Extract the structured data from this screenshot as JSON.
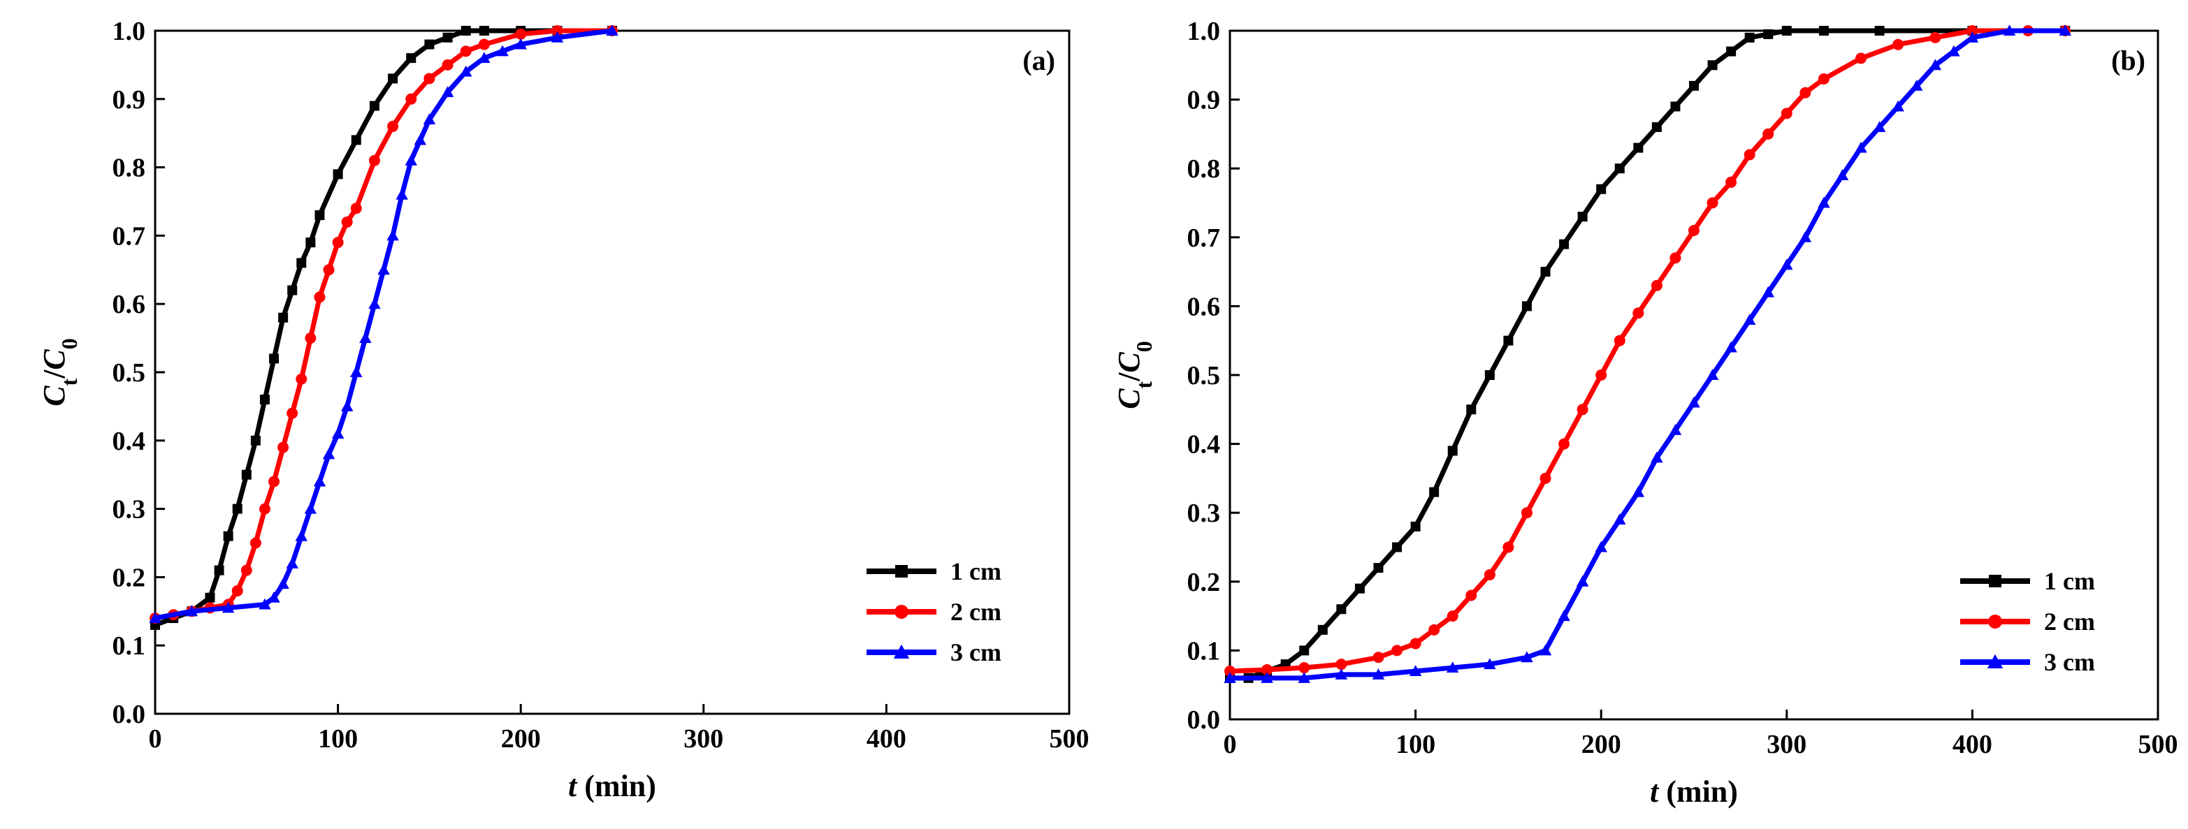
{
  "chart_data": [
    {
      "type": "line",
      "panel_label": "(a)",
      "xlabel_var": "t",
      "xlabel_unit": " (min)",
      "ylabel_main_1": "C",
      "ylabel_sub_1": "t",
      "ylabel_slash": "/",
      "ylabel_main_2": "C",
      "ylabel_sub_2": "0",
      "xlim": [
        0,
        500
      ],
      "ylim": [
        0,
        1.0
      ],
      "x_ticks": [
        0,
        100,
        200,
        300,
        400,
        500
      ],
      "y_ticks": [
        0.0,
        0.1,
        0.2,
        0.3,
        0.4,
        0.5,
        0.6,
        0.7,
        0.8,
        0.9,
        1.0
      ],
      "x_tick_labels": [
        "0",
        "100",
        "200",
        "300",
        "400",
        "500"
      ],
      "y_tick_labels": [
        "0.0",
        "0.1",
        "0.2",
        "0.3",
        "0.4",
        "0.5",
        "0.6",
        "0.7",
        "0.8",
        "0.9",
        "1.0"
      ],
      "legend_position": "lower-right",
      "series": [
        {
          "name": "1 cm",
          "color": "#000000",
          "marker": "square",
          "x": [
            0,
            10,
            20,
            30,
            35,
            40,
            45,
            50,
            55,
            60,
            65,
            70,
            75,
            80,
            85,
            90,
            100,
            110,
            120,
            130,
            140,
            150,
            160,
            170,
            180,
            200,
            220,
            250
          ],
          "y": [
            0.13,
            0.14,
            0.15,
            0.17,
            0.21,
            0.26,
            0.3,
            0.35,
            0.4,
            0.46,
            0.52,
            0.58,
            0.62,
            0.66,
            0.69,
            0.73,
            0.79,
            0.84,
            0.89,
            0.93,
            0.96,
            0.98,
            0.99,
            1.0,
            1.0,
            1.0,
            1.0,
            1.0
          ]
        },
        {
          "name": "2 cm",
          "color": "#ff0000",
          "marker": "circle",
          "x": [
            0,
            10,
            20,
            30,
            40,
            45,
            50,
            55,
            60,
            65,
            70,
            75,
            80,
            85,
            90,
            95,
            100,
            105,
            110,
            120,
            130,
            140,
            150,
            160,
            170,
            180,
            200,
            220,
            250
          ],
          "y": [
            0.14,
            0.145,
            0.15,
            0.155,
            0.16,
            0.18,
            0.21,
            0.25,
            0.3,
            0.34,
            0.39,
            0.44,
            0.49,
            0.55,
            0.61,
            0.65,
            0.69,
            0.72,
            0.74,
            0.81,
            0.86,
            0.9,
            0.93,
            0.95,
            0.97,
            0.98,
            0.995,
            1.0,
            1.0
          ],
          "note": "markers visible"
        },
        {
          "name": "3 cm",
          "color": "#0000ff",
          "marker": "triangle",
          "x": [
            0,
            20,
            40,
            60,
            65,
            70,
            75,
            80,
            85,
            90,
            95,
            100,
            105,
            110,
            115,
            120,
            125,
            130,
            135,
            140,
            145,
            150,
            160,
            170,
            180,
            190,
            200,
            220,
            250
          ],
          "y": [
            0.14,
            0.15,
            0.155,
            0.16,
            0.17,
            0.19,
            0.22,
            0.26,
            0.3,
            0.34,
            0.38,
            0.41,
            0.45,
            0.5,
            0.55,
            0.6,
            0.65,
            0.7,
            0.76,
            0.81,
            0.84,
            0.87,
            0.91,
            0.94,
            0.96,
            0.97,
            0.98,
            0.99,
            1.0
          ]
        }
      ]
    },
    {
      "type": "line",
      "panel_label": "(b)",
      "xlabel_var": "t",
      "xlabel_unit": " (min)",
      "ylabel_main_1": "C",
      "ylabel_sub_1": "t",
      "ylabel_slash": "/",
      "ylabel_main_2": "C",
      "ylabel_sub_2": "0",
      "xlim": [
        0,
        500
      ],
      "ylim": [
        0,
        1.0
      ],
      "x_ticks": [
        0,
        100,
        200,
        300,
        400,
        500
      ],
      "y_ticks": [
        0.0,
        0.1,
        0.2,
        0.3,
        0.4,
        0.5,
        0.6,
        0.7,
        0.8,
        0.9,
        1.0
      ],
      "x_tick_labels": [
        "0",
        "100",
        "200",
        "300",
        "400",
        "500"
      ],
      "y_tick_labels": [
        "0.0",
        "0.1",
        "0.2",
        "0.3",
        "0.4",
        "0.5",
        "0.6",
        "0.7",
        "0.8",
        "0.9",
        "1.0"
      ],
      "legend_position": "lower-right",
      "series": [
        {
          "name": "1 cm",
          "color": "#000000",
          "marker": "square",
          "x": [
            0,
            10,
            20,
            30,
            40,
            50,
            60,
            70,
            80,
            90,
            100,
            110,
            120,
            130,
            140,
            150,
            160,
            170,
            180,
            190,
            200,
            210,
            220,
            230,
            240,
            250,
            260,
            270,
            280,
            290,
            300,
            320,
            350,
            400,
            450
          ],
          "y": [
            0.06,
            0.06,
            0.07,
            0.08,
            0.1,
            0.13,
            0.16,
            0.19,
            0.22,
            0.25,
            0.28,
            0.33,
            0.39,
            0.45,
            0.5,
            0.55,
            0.6,
            0.65,
            0.69,
            0.73,
            0.77,
            0.8,
            0.83,
            0.86,
            0.89,
            0.92,
            0.95,
            0.97,
            0.99,
            0.995,
            1.0,
            1.0,
            1.0,
            1.0,
            1.0
          ]
        },
        {
          "name": "2 cm",
          "color": "#ff0000",
          "marker": "circle",
          "x": [
            0,
            20,
            40,
            60,
            80,
            90,
            100,
            110,
            120,
            130,
            140,
            150,
            160,
            170,
            180,
            190,
            200,
            210,
            220,
            230,
            240,
            250,
            260,
            270,
            280,
            290,
            300,
            310,
            320,
            340,
            360,
            380,
            400,
            430,
            450
          ],
          "y": [
            0.07,
            0.072,
            0.075,
            0.08,
            0.09,
            0.1,
            0.11,
            0.13,
            0.15,
            0.18,
            0.21,
            0.25,
            0.3,
            0.35,
            0.4,
            0.45,
            0.5,
            0.55,
            0.59,
            0.63,
            0.67,
            0.71,
            0.75,
            0.78,
            0.82,
            0.85,
            0.88,
            0.91,
            0.93,
            0.96,
            0.98,
            0.99,
            1.0,
            1.0,
            1.0
          ]
        },
        {
          "name": "3 cm",
          "color": "#0000ff",
          "marker": "triangle",
          "x": [
            0,
            20,
            40,
            60,
            80,
            100,
            120,
            140,
            160,
            170,
            180,
            190,
            200,
            210,
            220,
            230,
            240,
            250,
            260,
            270,
            280,
            290,
            300,
            310,
            320,
            330,
            340,
            350,
            360,
            370,
            380,
            390,
            400,
            420,
            450
          ],
          "y": [
            0.06,
            0.06,
            0.06,
            0.065,
            0.065,
            0.07,
            0.075,
            0.08,
            0.09,
            0.1,
            0.15,
            0.2,
            0.25,
            0.29,
            0.33,
            0.38,
            0.42,
            0.46,
            0.5,
            0.54,
            0.58,
            0.62,
            0.66,
            0.7,
            0.75,
            0.79,
            0.83,
            0.86,
            0.89,
            0.92,
            0.95,
            0.97,
            0.99,
            1.0,
            1.0
          ]
        }
      ]
    }
  ]
}
